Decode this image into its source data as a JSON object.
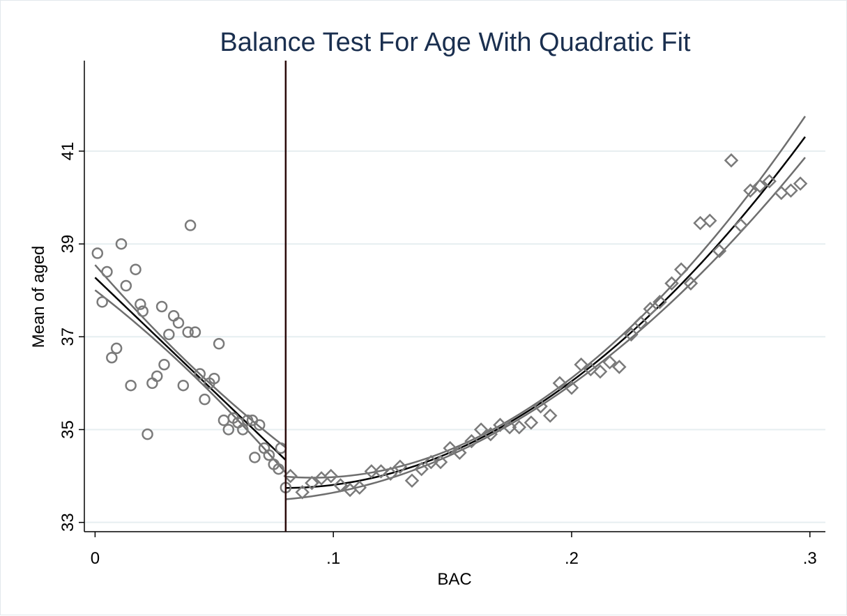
{
  "chart_data": {
    "type": "scatter",
    "title": "Balance Test For Age With Quadratic Fit",
    "xlabel": "BAC",
    "ylabel": "Mean of aged",
    "xlim": [
      -0.0045,
      0.3065
    ],
    "ylim": [
      32.8,
      42.95
    ],
    "x_ticks": [
      0,
      0.1,
      0.2,
      0.3
    ],
    "x_tick_labels": [
      "0",
      ".1",
      ".2",
      ".3"
    ],
    "y_ticks": [
      33,
      35,
      37,
      39,
      41
    ],
    "y_tick_labels": [
      "33",
      "35",
      "37",
      "39",
      "41"
    ],
    "grid": true,
    "cutoff": 0.08,
    "colors": {
      "markers": "#7a7a7a",
      "fit": "#000000",
      "ci": "#6e6e6e",
      "cutoff": "#2a0a0a",
      "grid": "#e6eef0",
      "title": "#1a2f4f"
    },
    "series": [
      {
        "marker": "circle",
        "points": [
          [
            0.001,
            38.8
          ],
          [
            0.003,
            37.75
          ],
          [
            0.005,
            38.4
          ],
          [
            0.007,
            36.55
          ],
          [
            0.009,
            36.75
          ],
          [
            0.011,
            39.0
          ],
          [
            0.013,
            38.1
          ],
          [
            0.015,
            35.95
          ],
          [
            0.017,
            38.45
          ],
          [
            0.019,
            37.7
          ],
          [
            0.02,
            37.55
          ],
          [
            0.022,
            34.9
          ],
          [
            0.024,
            36.0
          ],
          [
            0.026,
            36.15
          ],
          [
            0.028,
            37.65
          ],
          [
            0.029,
            36.4
          ],
          [
            0.031,
            37.05
          ],
          [
            0.033,
            37.45
          ],
          [
            0.035,
            37.3
          ],
          [
            0.037,
            35.95
          ],
          [
            0.039,
            37.1
          ],
          [
            0.04,
            39.4
          ],
          [
            0.042,
            37.1
          ],
          [
            0.044,
            36.2
          ],
          [
            0.046,
            35.65
          ],
          [
            0.048,
            36.0
          ],
          [
            0.05,
            36.1
          ],
          [
            0.052,
            36.85
          ],
          [
            0.054,
            35.2
          ],
          [
            0.056,
            35.0
          ],
          [
            0.058,
            35.25
          ],
          [
            0.06,
            35.15
          ],
          [
            0.062,
            35.0
          ],
          [
            0.064,
            35.2
          ],
          [
            0.066,
            35.2
          ],
          [
            0.067,
            34.4
          ],
          [
            0.069,
            35.1
          ],
          [
            0.071,
            34.6
          ],
          [
            0.073,
            34.45
          ],
          [
            0.075,
            34.25
          ],
          [
            0.077,
            34.15
          ],
          [
            0.078,
            34.6
          ],
          [
            0.08,
            33.75
          ]
        ]
      },
      {
        "marker": "diamond",
        "points": [
          [
            0.082,
            34.0
          ],
          [
            0.087,
            33.65
          ],
          [
            0.091,
            33.85
          ],
          [
            0.095,
            33.95
          ],
          [
            0.099,
            34.0
          ],
          [
            0.103,
            33.8
          ],
          [
            0.107,
            33.7
          ],
          [
            0.111,
            33.75
          ],
          [
            0.116,
            34.1
          ],
          [
            0.12,
            34.1
          ],
          [
            0.124,
            34.05
          ],
          [
            0.128,
            34.2
          ],
          [
            0.133,
            33.9
          ],
          [
            0.137,
            34.15
          ],
          [
            0.141,
            34.3
          ],
          [
            0.145,
            34.3
          ],
          [
            0.149,
            34.6
          ],
          [
            0.153,
            34.5
          ],
          [
            0.158,
            34.75
          ],
          [
            0.162,
            35.0
          ],
          [
            0.166,
            34.9
          ],
          [
            0.17,
            35.1
          ],
          [
            0.174,
            35.05
          ],
          [
            0.178,
            35.05
          ],
          [
            0.183,
            35.15
          ],
          [
            0.187,
            35.5
          ],
          [
            0.191,
            35.3
          ],
          [
            0.195,
            36.0
          ],
          [
            0.2,
            35.9
          ],
          [
            0.204,
            36.4
          ],
          [
            0.208,
            36.3
          ],
          [
            0.212,
            36.25
          ],
          [
            0.216,
            36.45
          ],
          [
            0.22,
            36.35
          ],
          [
            0.225,
            37.05
          ],
          [
            0.229,
            37.3
          ],
          [
            0.233,
            37.6
          ],
          [
            0.237,
            37.75
          ],
          [
            0.242,
            38.15
          ],
          [
            0.246,
            38.45
          ],
          [
            0.25,
            38.15
          ],
          [
            0.254,
            39.45
          ],
          [
            0.258,
            39.5
          ],
          [
            0.262,
            38.85
          ],
          [
            0.267,
            40.8
          ],
          [
            0.271,
            39.4
          ],
          [
            0.275,
            40.15
          ],
          [
            0.279,
            40.25
          ],
          [
            0.283,
            40.35
          ],
          [
            0.288,
            40.1
          ],
          [
            0.292,
            40.15
          ],
          [
            0.296,
            40.3
          ]
        ]
      }
    ],
    "fit": {
      "left": {
        "x_range": [
          0.0,
          0.08
        ]
      },
      "right": {
        "x_range": [
          0.08,
          0.298
        ]
      }
    }
  }
}
